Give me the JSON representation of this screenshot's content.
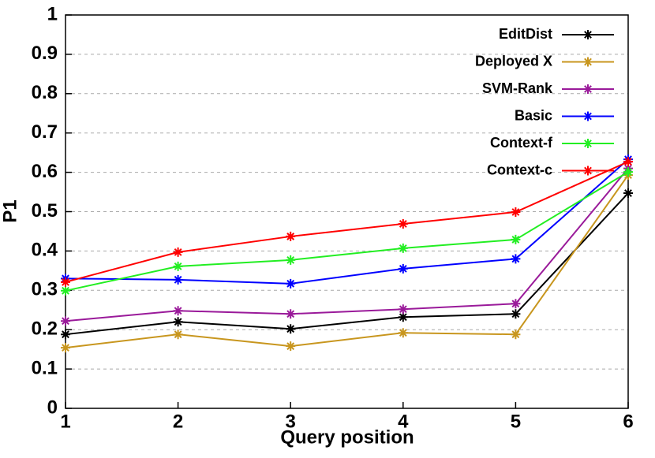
{
  "chart_data": {
    "type": "line",
    "xlabel": "Query position",
    "ylabel": "P1",
    "x": [
      1,
      2,
      3,
      4,
      5,
      6
    ],
    "xlim": [
      1,
      6
    ],
    "xticks": [
      1,
      2,
      3,
      4,
      5,
      6
    ],
    "ylim": [
      0,
      1
    ],
    "yticks": [
      0,
      0.1,
      0.2,
      0.3,
      0.4,
      0.5,
      0.6,
      0.7,
      0.8,
      0.9,
      1
    ],
    "grid": true,
    "legend": "top-right",
    "series": [
      {
        "name": "EditDist",
        "color": "#000000",
        "values": [
          0.188,
          0.22,
          0.202,
          0.232,
          0.24,
          0.547
        ]
      },
      {
        "name": "Deployed X",
        "color": "#c8961e",
        "values": [
          0.154,
          0.188,
          0.158,
          0.192,
          0.188,
          0.593
        ]
      },
      {
        "name": "SVM-Rank",
        "color": "#9a1a9a",
        "values": [
          0.222,
          0.248,
          0.24,
          0.252,
          0.266,
          0.61
        ]
      },
      {
        "name": "Basic",
        "color": "#0000ff",
        "values": [
          0.33,
          0.327,
          0.317,
          0.355,
          0.38,
          0.633
        ]
      },
      {
        "name": "Context-f",
        "color": "#22ee22",
        "values": [
          0.299,
          0.361,
          0.377,
          0.407,
          0.429,
          0.601
        ]
      },
      {
        "name": "Context-c",
        "color": "#ff0000",
        "values": [
          0.321,
          0.397,
          0.437,
          0.469,
          0.499,
          0.627
        ]
      }
    ]
  }
}
